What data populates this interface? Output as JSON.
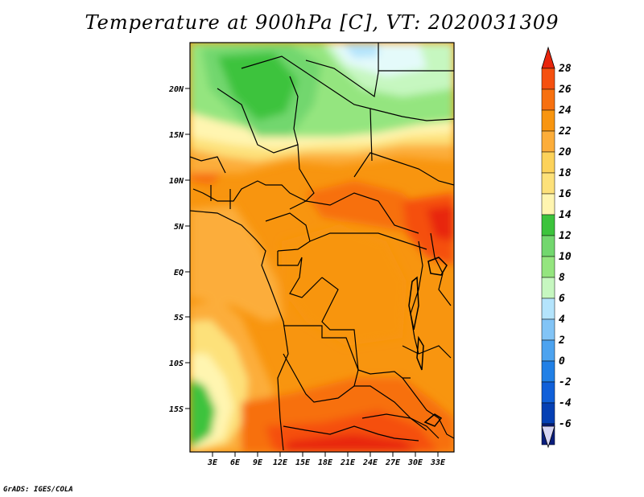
{
  "title": "Temperature at 900hPa [C], VT: 2020031309",
  "credit": "GrADS: IGES/COLA",
  "map": {
    "lon_range": [
      0,
      35
    ],
    "lat_range": [
      -20,
      25
    ],
    "lat_ticks": [
      "20N",
      "15N",
      "10N",
      "5N",
      "EQ",
      "5S",
      "10S",
      "15S"
    ],
    "lon_ticks": [
      "3E",
      "6E",
      "9E",
      "12E",
      "15E",
      "18E",
      "21E",
      "24E",
      "27E",
      "30E",
      "33E"
    ]
  },
  "colorbar": {
    "labels": [
      "28",
      "26",
      "24",
      "22",
      "20",
      "18",
      "16",
      "14",
      "12",
      "10",
      "8",
      "6",
      "4",
      "2",
      "0",
      "-2",
      "-4",
      "-6"
    ],
    "colors": [
      "#e8250c",
      "#f5500f",
      "#f7700f",
      "#f8950f",
      "#fcad3a",
      "#fde17a",
      "#fff5b0",
      "#3cc33c",
      "#72d76e",
      "#94e57f",
      "#c6f7c0",
      "#e4fafa",
      "#b4e4fc",
      "#82c4f6",
      "#4da3ef",
      "#2180e6",
      "#1060d9",
      "#0540b4",
      "#0a1e7d",
      "#d7d5f3"
    ]
  }
}
